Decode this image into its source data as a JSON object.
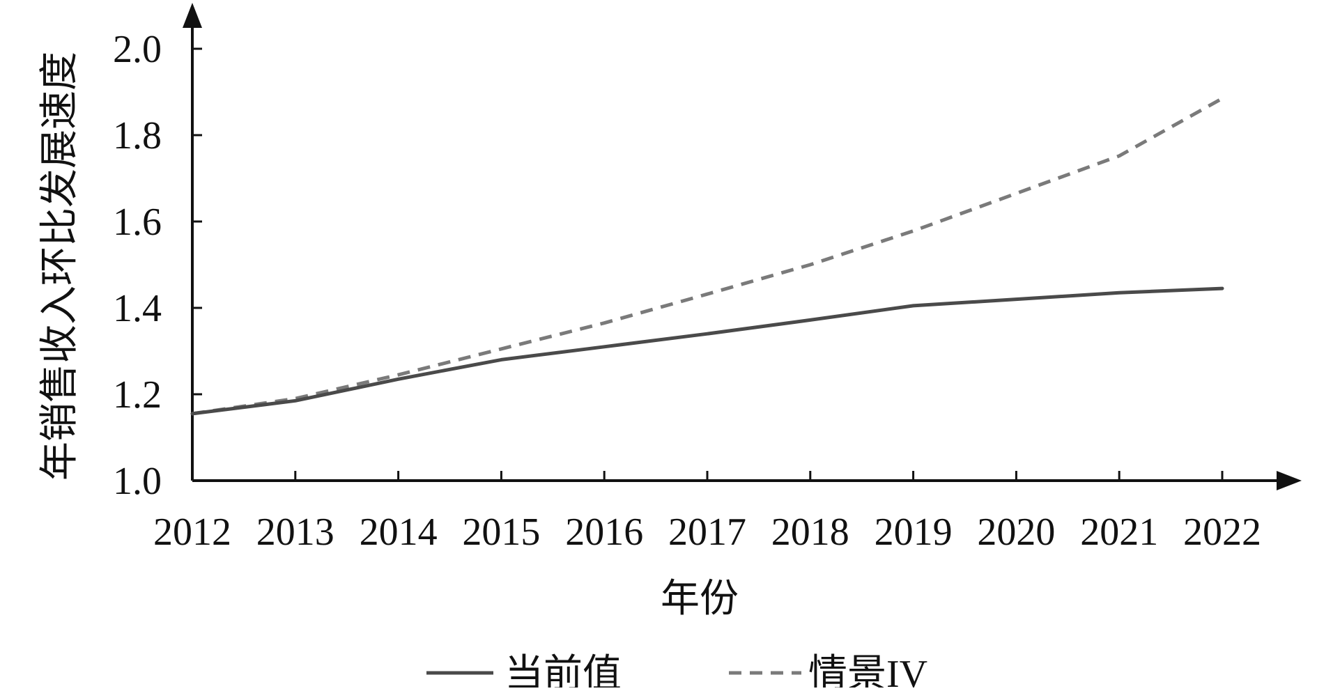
{
  "chart_data": {
    "type": "line",
    "title": "",
    "xlabel": "年份",
    "ylabel": "年销售收入环比发展速度",
    "x": [
      2012,
      2013,
      2014,
      2015,
      2016,
      2017,
      2018,
      2019,
      2020,
      2021,
      2022
    ],
    "x_tick_labels": [
      "2012",
      "2013",
      "2014",
      "2015",
      "2016",
      "2017",
      "2018",
      "2019",
      "2020",
      "2021",
      "2022"
    ],
    "y_ticks": [
      1.0,
      1.2,
      1.4,
      1.6,
      1.8,
      2.0
    ],
    "y_tick_labels": [
      "1.0",
      "1.2",
      "1.4",
      "1.6",
      "1.8",
      "2.0"
    ],
    "ylim": [
      1.0,
      2.0
    ],
    "grid": false,
    "legend_position": "bottom",
    "series": [
      {
        "name": "当前值",
        "style": "solid",
        "color": "#4a4a4a",
        "values": [
          1.155,
          1.185,
          1.235,
          1.28,
          1.31,
          1.34,
          1.372,
          1.405,
          1.42,
          1.435,
          1.445
        ]
      },
      {
        "name": "情景IV",
        "style": "dashed",
        "color": "#7a7a7a",
        "values": [
          1.155,
          1.19,
          1.245,
          1.305,
          1.365,
          1.432,
          1.5,
          1.578,
          1.665,
          1.752,
          1.885
        ]
      }
    ]
  }
}
